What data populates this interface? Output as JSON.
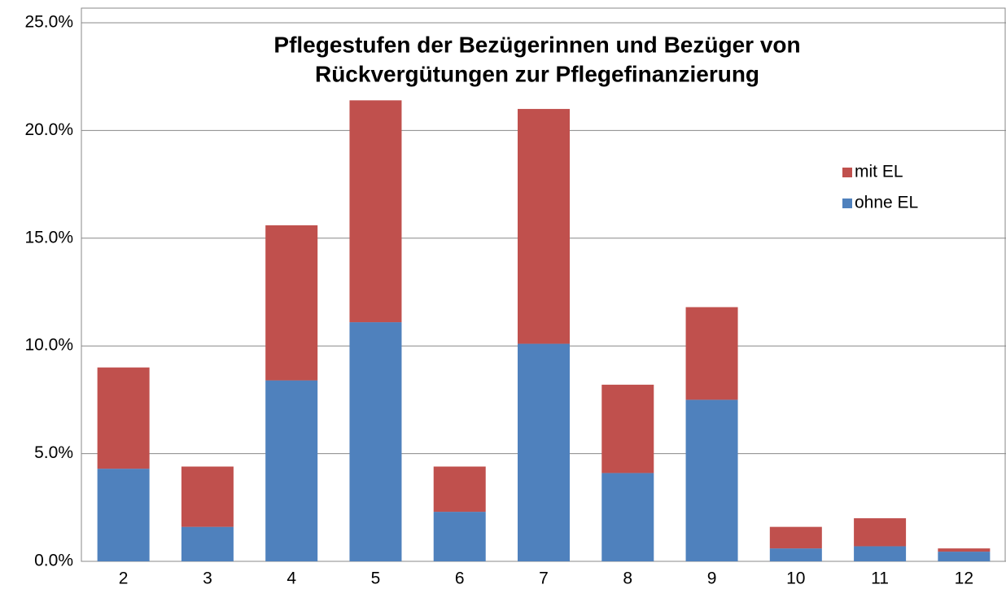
{
  "chart_data": {
    "type": "stacked_bar",
    "title": [
      "Pflegestufen der Bezügerinnen und Bezüger von",
      "Rückvergütungen zur Pflegefinanzierung"
    ],
    "categories": [
      "2",
      "3",
      "4",
      "5",
      "6",
      "7",
      "8",
      "9",
      "10",
      "11",
      "12"
    ],
    "series": [
      {
        "name": "ohne EL",
        "color": "#4f81bd",
        "values": [
          4.3,
          1.6,
          8.4,
          11.1,
          2.3,
          10.1,
          4.1,
          7.5,
          0.6,
          0.7,
          0.45
        ]
      },
      {
        "name": "mit EL",
        "color": "#c0504d",
        "values": [
          4.7,
          2.8,
          7.2,
          10.3,
          2.1,
          10.9,
          4.1,
          4.3,
          1.0,
          1.3,
          0.15
        ]
      }
    ],
    "ylim": [
      0,
      25
    ],
    "yticks": [
      {
        "value": 0,
        "label": "0.0%"
      },
      {
        "value": 5,
        "label": "5.0%"
      },
      {
        "value": 10,
        "label": "10.0%"
      },
      {
        "value": 15,
        "label": "15.0%"
      },
      {
        "value": 20,
        "label": "20.0%"
      },
      {
        "value": 25,
        "label": "25.0%"
      }
    ],
    "grid": true,
    "legend": "right"
  }
}
